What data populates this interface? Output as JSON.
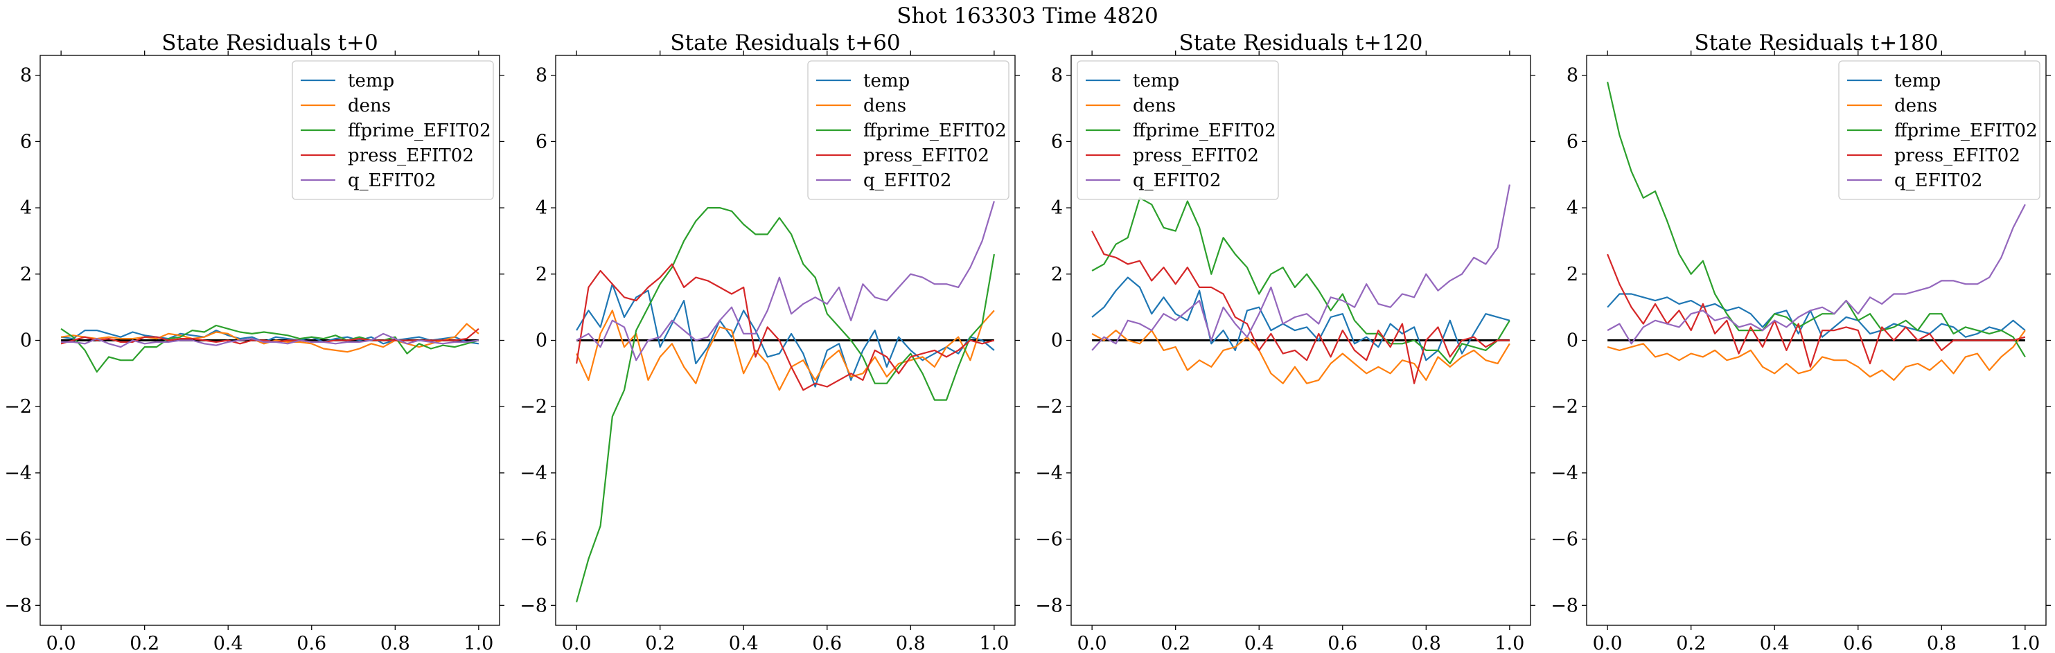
{
  "figure": {
    "suptitle": "Shot 163303   Time 4820"
  },
  "colors": {
    "temp": "#1f77b4",
    "dens": "#ff7f0e",
    "ffprime_EFIT02": "#2ca02c",
    "press_EFIT02": "#d62728",
    "q_EFIT02": "#9467bd",
    "zero_line": "#000000"
  },
  "chart_data": [
    {
      "type": "line",
      "title": "State Residuals t+0",
      "xlim": [
        -0.05,
        1.05
      ],
      "ylim": [
        -8.6,
        8.6
      ],
      "xticks": [
        "0.0",
        "0.2",
        "0.4",
        "0.6",
        "0.8",
        "1.0"
      ],
      "yticks": [
        "8",
        "6",
        "4",
        "2",
        "0",
        "−2",
        "−4",
        "−6",
        "−8"
      ],
      "legend_position": "upper right",
      "series": [
        {
          "name": "temp",
          "color": "#1f77b4",
          "values": [
            0.1,
            0.05,
            0.3,
            0.3,
            0.2,
            0.1,
            0.25,
            0.15,
            0.1,
            0.05,
            0.2,
            0.15,
            0.1,
            0.3,
            0.15,
            0.05,
            0.1,
            -0.05,
            0.1,
            0.05,
            0.0,
            0.1,
            -0.05,
            0.05,
            0.1,
            0.0,
            0.1,
            -0.1,
            0.0,
            0.05,
            0.1,
            0.0,
            0.05,
            0.1,
            -0.05,
            -0.1
          ]
        },
        {
          "name": "dens",
          "color": "#ff7f0e",
          "values": [
            0.1,
            0.15,
            0.1,
            0.05,
            0.1,
            0.05,
            0.05,
            0.1,
            0.05,
            0.2,
            0.15,
            0.05,
            0.1,
            0.25,
            0.2,
            0.0,
            0.05,
            -0.1,
            0.0,
            -0.05,
            -0.05,
            -0.1,
            -0.25,
            -0.3,
            -0.35,
            -0.25,
            -0.1,
            -0.2,
            0.0,
            -0.1,
            -0.2,
            -0.1,
            0.0,
            0.1,
            0.5,
            0.2
          ]
        },
        {
          "name": "ffprime_EFIT02",
          "color": "#2ca02c",
          "values": [
            0.35,
            0.1,
            -0.3,
            -0.95,
            -0.5,
            -0.6,
            -0.6,
            -0.2,
            -0.2,
            0.05,
            0.1,
            0.3,
            0.25,
            0.45,
            0.35,
            0.25,
            0.2,
            0.25,
            0.2,
            0.15,
            0.05,
            0.1,
            0.05,
            0.15,
            0.0,
            0.1,
            0.0,
            0.0,
            0.1,
            -0.4,
            -0.1,
            -0.25,
            -0.15,
            -0.2,
            -0.1,
            0.0
          ]
        },
        {
          "name": "press_EFIT02",
          "color": "#d62728",
          "values": [
            -0.1,
            0.0,
            0.1,
            0.0,
            0.05,
            -0.05,
            -0.05,
            0.1,
            0.1,
            0.0,
            0.05,
            0.05,
            0.0,
            -0.05,
            0.0,
            -0.1,
            0.0,
            0.0,
            -0.05,
            0.0,
            0.0,
            -0.05,
            -0.05,
            0.0,
            0.0,
            0.05,
            0.0,
            0.0,
            0.0,
            0.0,
            0.0,
            0.0,
            0.0,
            0.0,
            0.05,
            0.35
          ]
        },
        {
          "name": "q_EFIT02",
          "color": "#9467bd",
          "values": [
            -0.05,
            -0.05,
            -0.1,
            0.05,
            -0.1,
            -0.2,
            0.0,
            -0.1,
            -0.05,
            -0.05,
            0.0,
            0.0,
            -0.1,
            -0.15,
            -0.05,
            0.0,
            0.05,
            -0.05,
            -0.05,
            -0.1,
            0.0,
            -0.05,
            -0.05,
            -0.1,
            -0.05,
            -0.05,
            0.0,
            0.2,
            0.05,
            -0.1,
            0.0,
            -0.05,
            -0.1,
            -0.05,
            -0.05,
            0.0
          ]
        }
      ]
    },
    {
      "type": "line",
      "title": "State Residuals t+60",
      "xlim": [
        -0.05,
        1.05
      ],
      "ylim": [
        -8.6,
        8.6
      ],
      "xticks": [
        "0.0",
        "0.2",
        "0.4",
        "0.6",
        "0.8",
        "1.0"
      ],
      "yticks": [
        "8",
        "6",
        "4",
        "2",
        "0",
        "−2",
        "−4",
        "−6",
        "−8"
      ],
      "legend_position": "upper right",
      "series": [
        {
          "name": "temp",
          "color": "#1f77b4",
          "values": [
            0.3,
            0.9,
            0.4,
            1.7,
            0.7,
            1.3,
            1.5,
            -0.2,
            0.5,
            1.2,
            -0.7,
            -0.2,
            0.6,
            0.1,
            0.9,
            0.3,
            -0.5,
            -0.4,
            0.2,
            -0.4,
            -1.4,
            -0.3,
            -0.1,
            -1.2,
            -0.3,
            0.3,
            -0.8,
            0.1,
            -0.3,
            -0.6,
            -0.4,
            -0.2,
            -0.4,
            0.1,
            0.0,
            -0.3
          ]
        },
        {
          "name": "dens",
          "color": "#ff7f0e",
          "values": [
            -0.4,
            -1.2,
            0.2,
            0.9,
            -0.2,
            0.2,
            -1.2,
            -0.5,
            -0.1,
            -0.8,
            -1.3,
            -0.3,
            0.4,
            0.3,
            -1.0,
            -0.3,
            -0.7,
            -1.5,
            -0.8,
            -0.6,
            -1.2,
            -0.6,
            -0.3,
            -1.1,
            -1.0,
            -0.5,
            -1.1,
            -0.7,
            -0.6,
            -0.5,
            -0.8,
            -0.2,
            0.1,
            -0.6,
            0.5,
            0.9
          ]
        },
        {
          "name": "ffprime_EFIT02",
          "color": "#2ca02c",
          "values": [
            -7.9,
            -6.6,
            -5.6,
            -2.3,
            -1.5,
            0.3,
            1.0,
            1.7,
            2.2,
            3.0,
            3.6,
            4.0,
            4.0,
            3.9,
            3.5,
            3.2,
            3.2,
            3.7,
            3.2,
            2.3,
            1.9,
            0.8,
            0.4,
            0.0,
            -0.5,
            -1.3,
            -1.3,
            -0.8,
            -0.4,
            -1.0,
            -1.8,
            -1.8,
            -0.8,
            0.1,
            0.5,
            2.6
          ]
        },
        {
          "name": "press_EFIT02",
          "color": "#d62728",
          "values": [
            -0.7,
            1.6,
            2.1,
            1.7,
            1.3,
            1.2,
            1.6,
            1.9,
            2.3,
            1.6,
            1.9,
            1.8,
            1.6,
            1.4,
            1.6,
            -0.5,
            0.4,
            0.0,
            -0.8,
            -1.5,
            -1.3,
            -1.4,
            -1.2,
            -1.0,
            -1.2,
            -0.3,
            -0.5,
            -1.0,
            -0.5,
            -0.4,
            -0.3,
            -0.5,
            -0.3,
            0.0,
            -0.1,
            0.0
          ]
        },
        {
          "name": "q_EFIT02",
          "color": "#9467bd",
          "values": [
            0.0,
            0.2,
            -0.2,
            0.6,
            0.4,
            -0.6,
            0.0,
            0.1,
            0.6,
            0.3,
            0.0,
            0.1,
            0.6,
            1.0,
            0.2,
            0.2,
            0.9,
            1.9,
            0.8,
            1.1,
            1.3,
            1.1,
            1.6,
            0.6,
            1.7,
            1.3,
            1.2,
            1.6,
            2.0,
            1.9,
            1.7,
            1.7,
            1.6,
            2.2,
            3.0,
            4.2
          ]
        }
      ]
    },
    {
      "type": "line",
      "title": "State Residuals t+120",
      "xlim": [
        -0.05,
        1.05
      ],
      "ylim": [
        -8.6,
        8.6
      ],
      "xticks": [
        "0.0",
        "0.2",
        "0.4",
        "0.6",
        "0.8",
        "1.0"
      ],
      "yticks": [
        "8",
        "6",
        "4",
        "2",
        "0",
        "−2",
        "−4",
        "−6",
        "−8"
      ],
      "legend_position": "upper left",
      "series": [
        {
          "name": "temp",
          "color": "#1f77b4",
          "values": [
            0.7,
            1.0,
            1.5,
            1.9,
            1.6,
            0.8,
            1.3,
            0.8,
            0.6,
            1.5,
            -0.1,
            0.3,
            -0.3,
            0.9,
            1.0,
            0.3,
            0.5,
            0.3,
            0.4,
            0.0,
            0.7,
            0.8,
            -0.1,
            0.1,
            -0.2,
            0.5,
            0.2,
            0.4,
            -0.6,
            -0.3,
            0.6,
            -0.4,
            0.2,
            0.8,
            0.7,
            0.6
          ]
        },
        {
          "name": "dens",
          "color": "#ff7f0e",
          "values": [
            0.2,
            0.0,
            0.3,
            0.0,
            -0.1,
            0.3,
            -0.3,
            -0.2,
            -0.9,
            -0.6,
            -0.8,
            -0.3,
            -0.2,
            0.1,
            -0.3,
            -1.0,
            -1.3,
            -0.8,
            -1.3,
            -1.2,
            -0.7,
            -0.4,
            -0.7,
            -1.0,
            -0.8,
            -1.0,
            -0.6,
            -0.7,
            -1.2,
            -0.5,
            -0.8,
            -0.5,
            -0.3,
            -0.6,
            -0.7,
            -0.1
          ]
        },
        {
          "name": "ffprime_EFIT02",
          "color": "#2ca02c",
          "values": [
            2.1,
            2.3,
            2.9,
            3.1,
            4.3,
            4.1,
            3.4,
            3.3,
            4.2,
            3.4,
            2.0,
            3.1,
            2.6,
            2.2,
            1.4,
            2.0,
            2.2,
            1.6,
            2.0,
            1.5,
            0.9,
            1.4,
            0.6,
            0.2,
            0.2,
            -0.1,
            -0.1,
            0.0,
            -0.3,
            -0.3,
            -0.7,
            -0.1,
            -0.2,
            -0.3,
            0.0,
            0.6
          ]
        },
        {
          "name": "press_EFIT02",
          "color": "#d62728",
          "values": [
            3.3,
            2.6,
            2.5,
            2.3,
            2.4,
            1.8,
            2.2,
            1.7,
            2.2,
            1.6,
            1.6,
            1.4,
            0.7,
            0.5,
            -0.3,
            0.2,
            -0.4,
            -0.3,
            -0.6,
            0.2,
            -0.5,
            0.3,
            -0.3,
            -0.6,
            0.3,
            -0.2,
            0.5,
            -1.3,
            0.0,
            0.4,
            -0.5,
            0.0,
            0.1,
            -0.2,
            0.0,
            0.0
          ]
        },
        {
          "name": "q_EFIT02",
          "color": "#9467bd",
          "values": [
            -0.3,
            0.1,
            -0.1,
            0.6,
            0.5,
            0.3,
            0.8,
            0.6,
            0.9,
            1.2,
            0.0,
            1.0,
            0.5,
            0.1,
            0.8,
            1.6,
            0.5,
            0.7,
            0.8,
            0.5,
            1.3,
            1.2,
            1.0,
            1.7,
            1.1,
            1.0,
            1.4,
            1.3,
            2.0,
            1.5,
            1.8,
            2.0,
            2.5,
            2.3,
            2.8,
            4.7
          ]
        }
      ]
    },
    {
      "type": "line",
      "title": "State Residuals t+180",
      "xlim": [
        -0.05,
        1.05
      ],
      "ylim": [
        -8.6,
        8.6
      ],
      "xticks": [
        "0.0",
        "0.2",
        "0.4",
        "0.6",
        "0.8",
        "1.0"
      ],
      "yticks": [
        "8",
        "6",
        "4",
        "2",
        "0",
        "−2",
        "−4",
        "−6",
        "−8"
      ],
      "legend_position": "upper right",
      "series": [
        {
          "name": "temp",
          "color": "#1f77b4",
          "values": [
            1.0,
            1.4,
            1.4,
            1.3,
            1.2,
            1.3,
            1.1,
            1.2,
            1.0,
            1.1,
            0.9,
            1.0,
            0.8,
            0.4,
            0.8,
            0.9,
            0.2,
            0.9,
            0.1,
            0.4,
            0.7,
            0.6,
            0.2,
            0.3,
            0.5,
            0.4,
            0.3,
            0.2,
            0.5,
            0.4,
            0.1,
            0.2,
            0.4,
            0.3,
            0.6,
            0.3
          ]
        },
        {
          "name": "dens",
          "color": "#ff7f0e",
          "values": [
            -0.2,
            -0.3,
            -0.2,
            -0.1,
            -0.5,
            -0.4,
            -0.6,
            -0.4,
            -0.5,
            -0.3,
            -0.6,
            -0.5,
            -0.3,
            -0.8,
            -1.0,
            -0.7,
            -1.0,
            -0.9,
            -0.5,
            -0.6,
            -0.6,
            -0.8,
            -1.1,
            -0.9,
            -1.2,
            -0.8,
            -0.7,
            -0.9,
            -0.6,
            -1.0,
            -0.5,
            -0.4,
            -0.9,
            -0.5,
            -0.2,
            0.3
          ]
        },
        {
          "name": "ffprime_EFIT02",
          "color": "#2ca02c",
          "values": [
            7.8,
            6.2,
            5.1,
            4.3,
            4.5,
            3.6,
            2.6,
            2.0,
            2.4,
            1.4,
            0.8,
            0.3,
            0.3,
            0.3,
            0.8,
            0.7,
            0.4,
            0.6,
            0.8,
            0.8,
            1.2,
            0.6,
            0.8,
            0.3,
            0.4,
            0.6,
            0.3,
            0.8,
            0.8,
            0.2,
            0.4,
            0.3,
            0.2,
            0.3,
            0.1,
            -0.5
          ]
        },
        {
          "name": "press_EFIT02",
          "color": "#d62728",
          "values": [
            2.6,
            1.7,
            1.0,
            0.5,
            1.1,
            0.5,
            0.9,
            0.3,
            1.1,
            0.2,
            0.6,
            -0.4,
            0.4,
            -0.2,
            0.6,
            -0.3,
            0.5,
            -0.8,
            0.3,
            0.3,
            0.4,
            0.3,
            -0.7,
            0.4,
            0.0,
            0.4,
            0.0,
            0.2,
            -0.3,
            0.0,
            0.0,
            0.0,
            0.0,
            0.0,
            0.0,
            0.1
          ]
        },
        {
          "name": "q_EFIT02",
          "color": "#9467bd",
          "values": [
            0.3,
            0.5,
            -0.1,
            0.4,
            0.6,
            0.5,
            0.4,
            0.8,
            0.9,
            0.6,
            0.7,
            0.4,
            0.5,
            0.3,
            0.6,
            0.4,
            0.7,
            0.9,
            1.0,
            0.8,
            1.2,
            0.8,
            1.3,
            1.1,
            1.4,
            1.4,
            1.5,
            1.6,
            1.8,
            1.8,
            1.7,
            1.7,
            1.9,
            2.5,
            3.4,
            4.1
          ]
        }
      ]
    }
  ]
}
